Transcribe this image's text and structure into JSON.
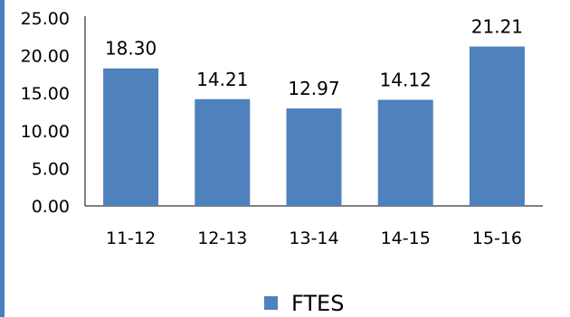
{
  "chart_data": {
    "type": "bar",
    "categories": [
      "11-12",
      "12-13",
      "13-14",
      "14-15",
      "15-16"
    ],
    "series": [
      {
        "name": "FTES",
        "values": [
          18.3,
          14.21,
          12.97,
          14.12,
          21.21
        ],
        "labels": [
          "18.30",
          "14.21",
          "12.97",
          "14.12",
          "21.21"
        ]
      }
    ],
    "y_ticks": [
      "0.00",
      "5.00",
      "10.00",
      "15.00",
      "20.00",
      "25.00"
    ],
    "ylim": [
      0,
      25
    ],
    "grid": false,
    "legend_position": "bottom",
    "bar_color": "#4f81bd",
    "accent_color": "#4a7ebf"
  }
}
